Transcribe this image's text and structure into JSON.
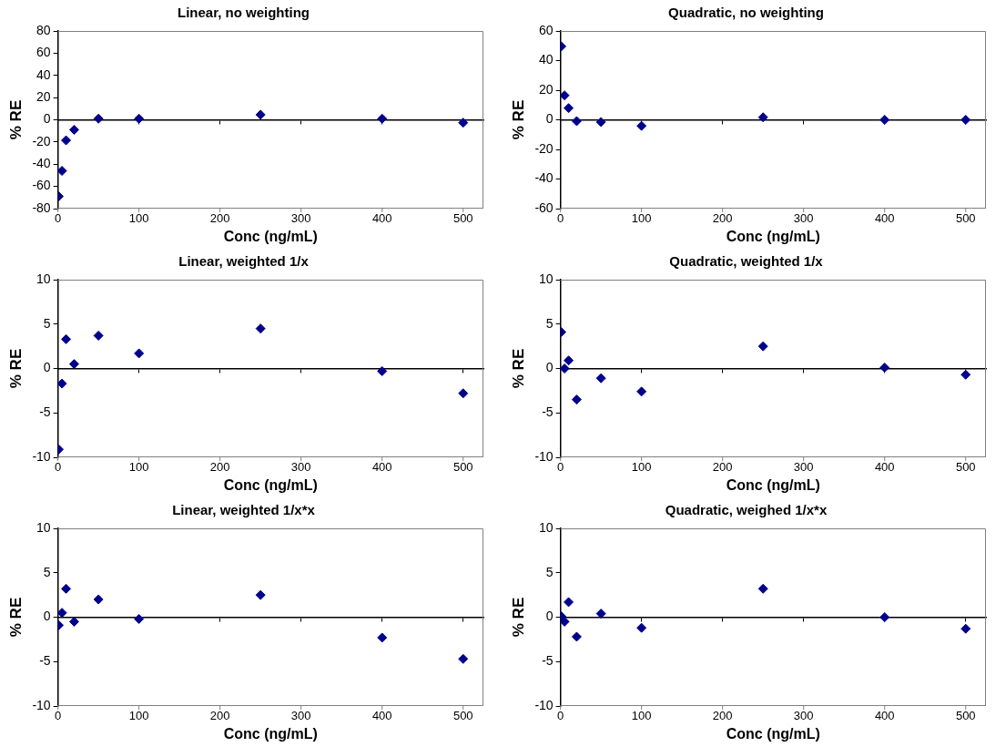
{
  "chart_data": [
    {
      "type": "scatter",
      "title": "Linear, no weighting",
      "xlabel": "Conc (ng/mL)",
      "ylabel": "% RE",
      "x": [
        1,
        5,
        10,
        20,
        50,
        100,
        250,
        400,
        500
      ],
      "values": [
        -69,
        -46,
        -18.5,
        -9,
        1,
        1,
        4.6,
        1,
        -2.6
      ],
      "color": "#00008b",
      "marker": "diamond",
      "xlim": [
        0,
        525
      ],
      "xticks": [
        0,
        100,
        200,
        300,
        400,
        500
      ],
      "ylim": [
        -80,
        80
      ],
      "yticks": [
        -80,
        -60,
        -40,
        -20,
        0,
        20,
        40,
        60,
        80
      ]
    },
    {
      "type": "scatter",
      "title": "Quadratic, no weighting",
      "xlabel": "Conc (ng/mL)",
      "ylabel": "% RE",
      "x": [
        1,
        5,
        10,
        20,
        50,
        100,
        250,
        400,
        500
      ],
      "values": [
        49.6,
        16.5,
        7.9,
        -0.9,
        -1.5,
        -4.1,
        1.7,
        0,
        0
      ],
      "color": "#00008b",
      "marker": "diamond",
      "xlim": [
        0,
        525
      ],
      "xticks": [
        0,
        100,
        200,
        300,
        400,
        500
      ],
      "ylim": [
        -60,
        60
      ],
      "yticks": [
        -60,
        -40,
        -20,
        0,
        20,
        40,
        60
      ]
    },
    {
      "type": "scatter",
      "title": "Linear, weighted 1/x",
      "xlabel": "Conc (ng/mL)",
      "ylabel": "% RE",
      "x": [
        1,
        5,
        10,
        20,
        50,
        100,
        250,
        400,
        500
      ],
      "values": [
        -9.1,
        -1.7,
        3.3,
        0.5,
        3.7,
        1.7,
        4.5,
        -0.3,
        -2.8
      ],
      "color": "#00008b",
      "marker": "diamond",
      "xlim": [
        0,
        525
      ],
      "xticks": [
        0,
        100,
        200,
        300,
        400,
        500
      ],
      "ylim": [
        -10,
        10
      ],
      "yticks": [
        -10,
        -5,
        0,
        5,
        10
      ]
    },
    {
      "type": "scatter",
      "title": "Quadratic, weighted 1/x",
      "xlabel": "Conc (ng/mL)",
      "ylabel": "% RE",
      "x": [
        1,
        5,
        10,
        20,
        50,
        100,
        250,
        400,
        500
      ],
      "values": [
        4.1,
        0,
        0.9,
        -3.5,
        -1.1,
        -2.6,
        2.5,
        0.1,
        -0.7
      ],
      "color": "#00008b",
      "marker": "diamond",
      "xlim": [
        0,
        525
      ],
      "xticks": [
        0,
        100,
        200,
        300,
        400,
        500
      ],
      "ylim": [
        -10,
        10
      ],
      "yticks": [
        -10,
        -5,
        0,
        5,
        10
      ]
    },
    {
      "type": "scatter",
      "title": "Linear, weighted 1/x*x",
      "xlabel": "Conc (ng/mL)",
      "ylabel": "% RE",
      "x": [
        1,
        5,
        10,
        20,
        50,
        100,
        250,
        400,
        500
      ],
      "values": [
        -0.9,
        0.5,
        3.2,
        -0.5,
        2,
        -0.2,
        2.5,
        -2.3,
        -4.7
      ],
      "color": "#00008b",
      "marker": "diamond",
      "xlim": [
        0,
        525
      ],
      "xticks": [
        0,
        100,
        200,
        300,
        400,
        500
      ],
      "ylim": [
        -10,
        10
      ],
      "yticks": [
        -10,
        -5,
        0,
        5,
        10
      ]
    },
    {
      "type": "scatter",
      "title": "Quadratic, weighed 1/x*x",
      "xlabel": "Conc (ng/mL)",
      "ylabel": "% RE",
      "x": [
        1,
        5,
        10,
        20,
        50,
        100,
        250,
        400,
        500
      ],
      "values": [
        0.1,
        -0.5,
        1.7,
        -2.2,
        0.4,
        -1.2,
        3.2,
        0,
        -1.3
      ],
      "color": "#00008b",
      "marker": "diamond",
      "xlim": [
        0,
        525
      ],
      "xticks": [
        0,
        100,
        200,
        300,
        400,
        500
      ],
      "ylim": [
        -10,
        10
      ],
      "yticks": [
        -10,
        -5,
        0,
        5,
        10
      ]
    }
  ]
}
